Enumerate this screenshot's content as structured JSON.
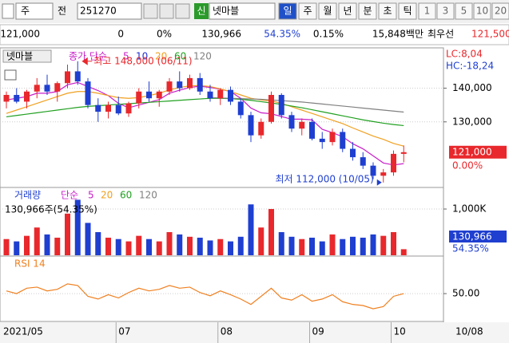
{
  "toolbar": {
    "market": "주",
    "prefix": "전",
    "code": "251270",
    "badge": "신",
    "name": "넷마블",
    "periods": [
      "일",
      "주",
      "월",
      "년",
      "분",
      "초",
      "틱"
    ],
    "counts": [
      "1",
      "3",
      "5",
      "10",
      "20"
    ]
  },
  "info_bar": {
    "price": "121,000",
    "change": "0",
    "change_rate": "0%",
    "volume": "130,966",
    "volume_rate": "54.35%",
    "turnover": "0.15%",
    "amount": "15,848백만",
    "best_label": "최우선",
    "best_price": "121,500"
  },
  "chart_data": {
    "type": "candlestick",
    "categories": [
      "2021/05",
      null,
      null,
      null,
      null,
      null,
      null,
      null,
      null,
      null,
      null,
      "07",
      null,
      null,
      null,
      null,
      null,
      null,
      null,
      null,
      null,
      "08",
      null,
      null,
      null,
      null,
      null,
      null,
      null,
      null,
      "09",
      null,
      null,
      null,
      null,
      null,
      null,
      null,
      "10",
      null
    ],
    "current_date": "10/08",
    "price_panel": {
      "title": "넷마블",
      "legend_prefix": "종가 단순",
      "legend": [
        {
          "label": "5",
          "color": "#c81ec8"
        },
        {
          "label": "10",
          "color": "#2030d0"
        },
        {
          "label": "20",
          "color": "#f0a020"
        },
        {
          "label": "60",
          "color": "#20a020"
        },
        {
          "label": "120",
          "color": "#808080"
        }
      ],
      "ylim": [
        111000,
        151500
      ],
      "yticks": [
        {
          "value": 140000,
          "label": "140,000"
        },
        {
          "value": 130000,
          "label": "130,000"
        }
      ],
      "lc": "LC:8,04",
      "hc": "HC:-18,24",
      "last_price": {
        "value": 121000,
        "label": "121,000"
      },
      "last_rate": "0.00%",
      "high_note": "최고 148,000 (06/11)",
      "low_note": "최저 112,000 (10/05)",
      "up_color": "#e8282c",
      "down_color": "#1f3fd0",
      "candles": [
        [
          136000,
          139000,
          134000,
          138000
        ],
        [
          138000,
          140000,
          135500,
          136000
        ],
        [
          136000,
          139500,
          134000,
          139000
        ],
        [
          139000,
          143000,
          137000,
          141000
        ],
        [
          141000,
          144000,
          138000,
          139000
        ],
        [
          139000,
          142000,
          136000,
          141500
        ],
        [
          141500,
          147000,
          140000,
          145000
        ],
        [
          145000,
          148000,
          141000,
          142000
        ],
        [
          142000,
          143000,
          134000,
          135000
        ],
        [
          135000,
          137000,
          130000,
          133000
        ],
        [
          133000,
          136000,
          131000,
          135000
        ],
        [
          135000,
          137500,
          132000,
          132500
        ],
        [
          132500,
          136000,
          131500,
          135500
        ],
        [
          135500,
          140000,
          134000,
          139000
        ],
        [
          139000,
          142000,
          136000,
          137000
        ],
        [
          137000,
          139500,
          134500,
          139000
        ],
        [
          139000,
          143000,
          138000,
          142000
        ],
        [
          142000,
          145000,
          139000,
          140000
        ],
        [
          140000,
          144000,
          139500,
          143000
        ],
        [
          143000,
          144500,
          138000,
          139000
        ],
        [
          139000,
          141000,
          136000,
          137000
        ],
        [
          137000,
          140000,
          135000,
          139500
        ],
        [
          139500,
          140500,
          135000,
          136000
        ],
        [
          136000,
          137000,
          131000,
          132000
        ],
        [
          132000,
          133000,
          124000,
          126000
        ],
        [
          126000,
          131000,
          125000,
          130000
        ],
        [
          130000,
          139000,
          129500,
          138000
        ],
        [
          138000,
          138500,
          131000,
          132000
        ],
        [
          132000,
          133000,
          127000,
          128000
        ],
        [
          128000,
          131000,
          126000,
          130000
        ],
        [
          130000,
          131000,
          124500,
          125000
        ],
        [
          125000,
          127000,
          122000,
          124000
        ],
        [
          124000,
          128000,
          123000,
          127000
        ],
        [
          127000,
          128000,
          121000,
          122000
        ],
        [
          122000,
          124000,
          118500,
          119500
        ],
        [
          119500,
          121000,
          116000,
          117000
        ],
        [
          117000,
          118000,
          113000,
          114000
        ],
        [
          114000,
          116000,
          112000,
          115000
        ],
        [
          115000,
          121500,
          114000,
          120500
        ],
        [
          120500,
          123000,
          118000,
          121000
        ]
      ],
      "series": [
        {
          "name": "5",
          "color": "#c81ec8",
          "values": [
            136500,
            137000,
            137500,
            138500,
            138500,
            139000,
            141000,
            141700,
            140500,
            139300,
            137800,
            135500,
            134200,
            135000,
            135800,
            136600,
            138500,
            139400,
            140200,
            140600,
            140200,
            139700,
            139000,
            137000,
            134100,
            132700,
            132400,
            131600,
            130800,
            130800,
            130600,
            127800,
            126800,
            125600,
            123500,
            122000,
            119900,
            117800,
            117200,
            117600
          ]
        },
        {
          "name": "20",
          "color": "#f0a020",
          "values": [
            132500,
            133500,
            134500,
            135500,
            136500,
            137500,
            138500,
            139000,
            139000,
            138500,
            137800,
            137200,
            137000,
            137200,
            137800,
            138500,
            139500,
            140200,
            140700,
            140800,
            140500,
            139800,
            139000,
            138000,
            137000,
            136500,
            136200,
            135500,
            134500,
            133500,
            132500,
            131500,
            130500,
            129500,
            128200,
            127000,
            125800,
            124800,
            123600,
            122800
          ]
        },
        {
          "name": "60",
          "color": "#20a020",
          "values": [
            131500,
            131900,
            132300,
            132700,
            133100,
            133500,
            133900,
            134300,
            134600,
            134800,
            135000,
            135200,
            135400,
            135600,
            135800,
            136000,
            136200,
            136400,
            136600,
            136800,
            137000,
            137000,
            136900,
            136700,
            136400,
            136000,
            135600,
            135200,
            134700,
            134200,
            133600,
            133000,
            132400,
            131800,
            131200,
            130600,
            130100,
            129600,
            129200,
            128900
          ]
        },
        {
          "name": "120",
          "color": "#808080",
          "values": [
            null,
            null,
            null,
            null,
            null,
            null,
            null,
            null,
            null,
            null,
            null,
            null,
            null,
            null,
            null,
            null,
            null,
            null,
            null,
            null,
            137200,
            137100,
            137000,
            136900,
            136800,
            136700,
            136500,
            136300,
            136100,
            135900,
            135600,
            135300,
            135000,
            134700,
            134400,
            134100,
            133800,
            133500,
            133200,
            132900
          ]
        }
      ]
    },
    "volume_panel": {
      "title": "거래량",
      "legend_prefix": "단순",
      "legend": [
        {
          "label": "5",
          "color": "#c81ec8"
        },
        {
          "label": "20",
          "color": "#f0a020"
        },
        {
          "label": "60",
          "color": "#20a020"
        },
        {
          "label": "120",
          "color": "#808080"
        }
      ],
      "summary": "130,966주(54.35%)",
      "ylim": [
        0,
        1380000
      ],
      "yticks": [
        {
          "value": 1000000,
          "label": "1,000K"
        }
      ],
      "last_volume": "130,966",
      "last_rate": "54.35%",
      "values": [
        350000,
        300000,
        420000,
        600000,
        450000,
        380000,
        900000,
        1200000,
        700000,
        500000,
        380000,
        350000,
        300000,
        420000,
        350000,
        300000,
        500000,
        450000,
        400000,
        380000,
        320000,
        350000,
        300000,
        400000,
        1100000,
        600000,
        1000000,
        500000,
        400000,
        350000,
        380000,
        300000,
        450000,
        350000,
        400000,
        380000,
        450000,
        420000,
        500000,
        130966
      ]
    },
    "rsi_panel": {
      "title": "RSI 14",
      "color": "#f08020",
      "ylim": [
        0,
        115
      ],
      "yticks": [
        {
          "value": 50,
          "label": "50.00"
        }
      ],
      "values": [
        55,
        50,
        60,
        62,
        55,
        58,
        68,
        65,
        45,
        40,
        48,
        42,
        52,
        60,
        55,
        58,
        65,
        60,
        62,
        52,
        46,
        55,
        48,
        40,
        30,
        45,
        60,
        42,
        38,
        48,
        36,
        40,
        48,
        35,
        30,
        28,
        22,
        26,
        45,
        50
      ]
    }
  }
}
